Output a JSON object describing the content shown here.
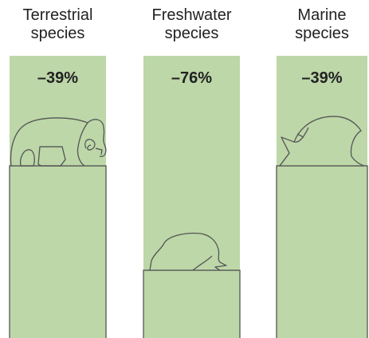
{
  "chart_data": {
    "type": "bar",
    "categories": [
      "Terrestrial species",
      "Freshwater species",
      "Marine species"
    ],
    "values": [
      -39,
      -76,
      -39
    ],
    "value_labels": [
      "–39%",
      "–76%",
      "–39%"
    ],
    "ylim": [
      -100,
      0
    ],
    "color": "#bdd7a8"
  }
}
